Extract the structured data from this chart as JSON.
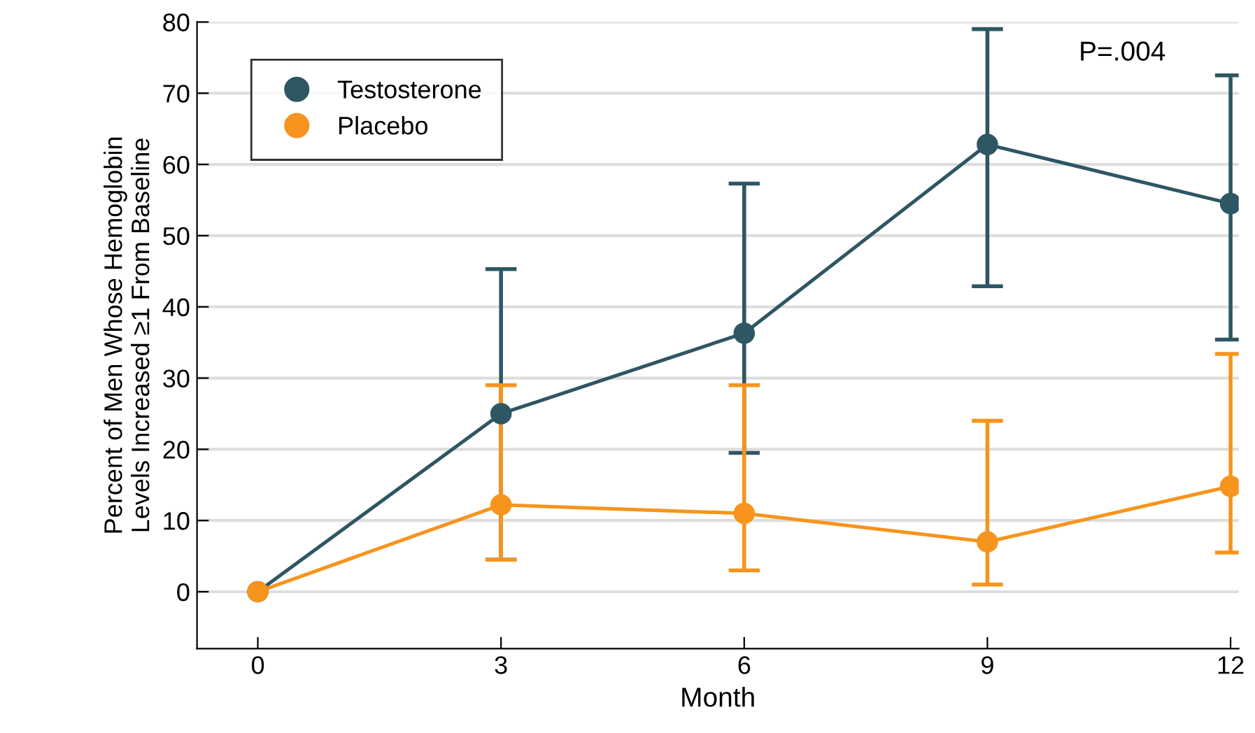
{
  "chart_data": {
    "type": "line",
    "xlabel": "Month",
    "ylabel": "Percent of Men Whose Hemoglobin\nLevels Increased ≥1 From Baseline",
    "x": [
      0,
      3,
      6,
      9,
      12
    ],
    "series": [
      {
        "name": "Testosterone",
        "color": "#2e5663",
        "values": [
          0,
          25,
          36.3,
          62.8,
          54.5
        ],
        "errors": [
          null,
          [
            4.5,
            45.3
          ],
          [
            19.5,
            57.3
          ],
          [
            42.9,
            79
          ],
          [
            35.4,
            72.5
          ]
        ]
      },
      {
        "name": "Placebo",
        "color": "#f7941d",
        "values": [
          0,
          12.2,
          11,
          7,
          14.8
        ],
        "errors": [
          null,
          [
            4.5,
            29
          ],
          [
            3,
            29
          ],
          [
            1,
            24
          ],
          [
            5.5,
            33.4
          ]
        ]
      }
    ],
    "xlim": [
      -0.75,
      12.1
    ],
    "ylim": [
      -8,
      80
    ],
    "xticks": [
      0,
      3,
      6,
      9,
      12
    ],
    "yticks": [
      0,
      10,
      20,
      30,
      40,
      50,
      60,
      70,
      80
    ],
    "grid": "y",
    "legend": "top left",
    "marker": "circle",
    "line_style": "solid",
    "annotations": [
      "P=.004"
    ]
  }
}
